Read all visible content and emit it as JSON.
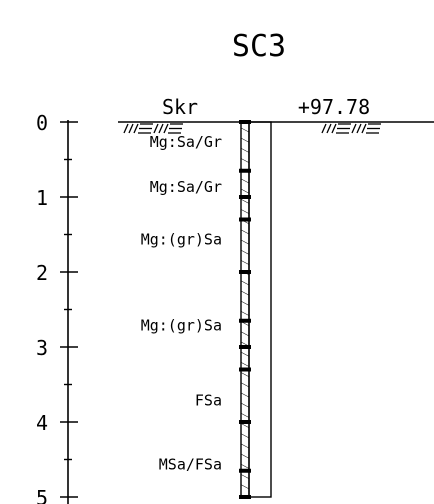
{
  "title": "SC3",
  "method_code": "Skr",
  "surface_level": "+97.78",
  "depth_axis": {
    "ticks": [
      "0",
      "1",
      "2",
      "3",
      "4",
      "5"
    ]
  },
  "soil_layers": [
    {
      "label": "Mg:Sa/Gr",
      "depth": 0.25
    },
    {
      "label": "Mg:Sa/Gr",
      "depth": 0.85
    },
    {
      "label": "Mg:(gr)Sa",
      "depth": 1.55
    },
    {
      "label": "Mg:(gr)Sa",
      "depth": 2.7
    },
    {
      "label": "FSa",
      "depth": 3.7
    },
    {
      "label": "MSa/FSa",
      "depth": 4.55
    }
  ],
  "sample_depths": [
    0,
    0.65,
    1,
    1.3,
    2,
    2.65,
    3,
    3.3,
    4,
    4.65,
    5
  ],
  "colors": {
    "ink": "#000000",
    "background": "#ffffff"
  }
}
